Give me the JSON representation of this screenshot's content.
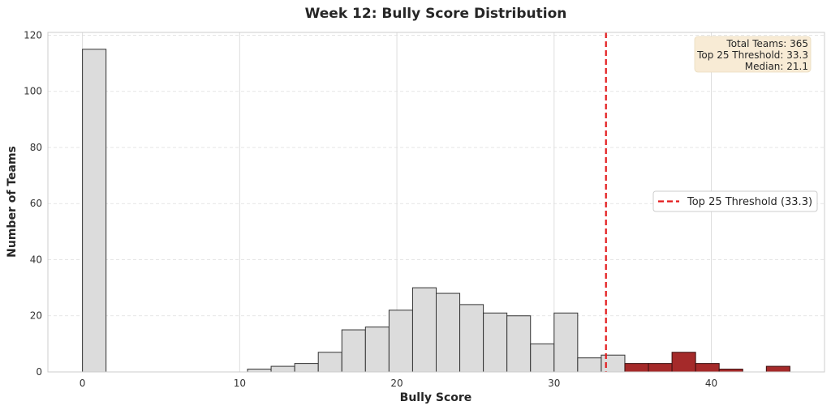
{
  "chart_data": {
    "type": "bar",
    "title": "Week 12: Bully Score Distribution",
    "xlabel": "Bully Score",
    "ylabel": "Number of Teams",
    "xlim": [
      -2.2,
      47.2
    ],
    "ylim": [
      0,
      121
    ],
    "xticks": [
      0,
      10,
      20,
      30,
      40
    ],
    "yticks": [
      0,
      20,
      40,
      60,
      80,
      100,
      120
    ],
    "grid": true,
    "bin_width": 1.5,
    "bins": [
      {
        "x0": 0.0,
        "count": 115
      },
      {
        "x0": 10.5,
        "count": 1
      },
      {
        "x0": 12.0,
        "count": 2
      },
      {
        "x0": 13.5,
        "count": 3
      },
      {
        "x0": 15.0,
        "count": 7
      },
      {
        "x0": 16.5,
        "count": 15
      },
      {
        "x0": 18.0,
        "count": 16
      },
      {
        "x0": 19.5,
        "count": 22
      },
      {
        "x0": 21.0,
        "count": 30
      },
      {
        "x0": 22.5,
        "count": 28
      },
      {
        "x0": 24.0,
        "count": 24
      },
      {
        "x0": 25.5,
        "count": 21
      },
      {
        "x0": 27.0,
        "count": 20
      },
      {
        "x0": 28.5,
        "count": 10
      },
      {
        "x0": 30.0,
        "count": 21
      },
      {
        "x0": 31.5,
        "count": 5
      },
      {
        "x0": 33.0,
        "count": 6
      },
      {
        "x0": 34.5,
        "count": 3,
        "highlight": true
      },
      {
        "x0": 36.0,
        "count": 3,
        "highlight": true
      },
      {
        "x0": 37.5,
        "count": 7,
        "highlight": true
      },
      {
        "x0": 39.0,
        "count": 3,
        "highlight": true
      },
      {
        "x0": 40.5,
        "count": 1,
        "highlight": true
      },
      {
        "x0": 43.5,
        "count": 2,
        "highlight": true
      }
    ],
    "threshold": {
      "value": 33.3,
      "label": "Top 25 Threshold (33.3)",
      "color": "#e31a1c",
      "style": "dashed"
    },
    "stats_box": {
      "lines": [
        "Total Teams: 365",
        "Top 25 Threshold: 33.3",
        "Median: 21.1"
      ],
      "placement": "top-right",
      "color": "#f8ebd5"
    },
    "legend": {
      "placement": "center-right"
    },
    "colors": {
      "bar_fill": "#dcdcdc",
      "bar_edge": "#333333",
      "highlight_fill": "#a52a2a",
      "grid": "#dddddd",
      "axis_edge": "#cccccc"
    }
  }
}
